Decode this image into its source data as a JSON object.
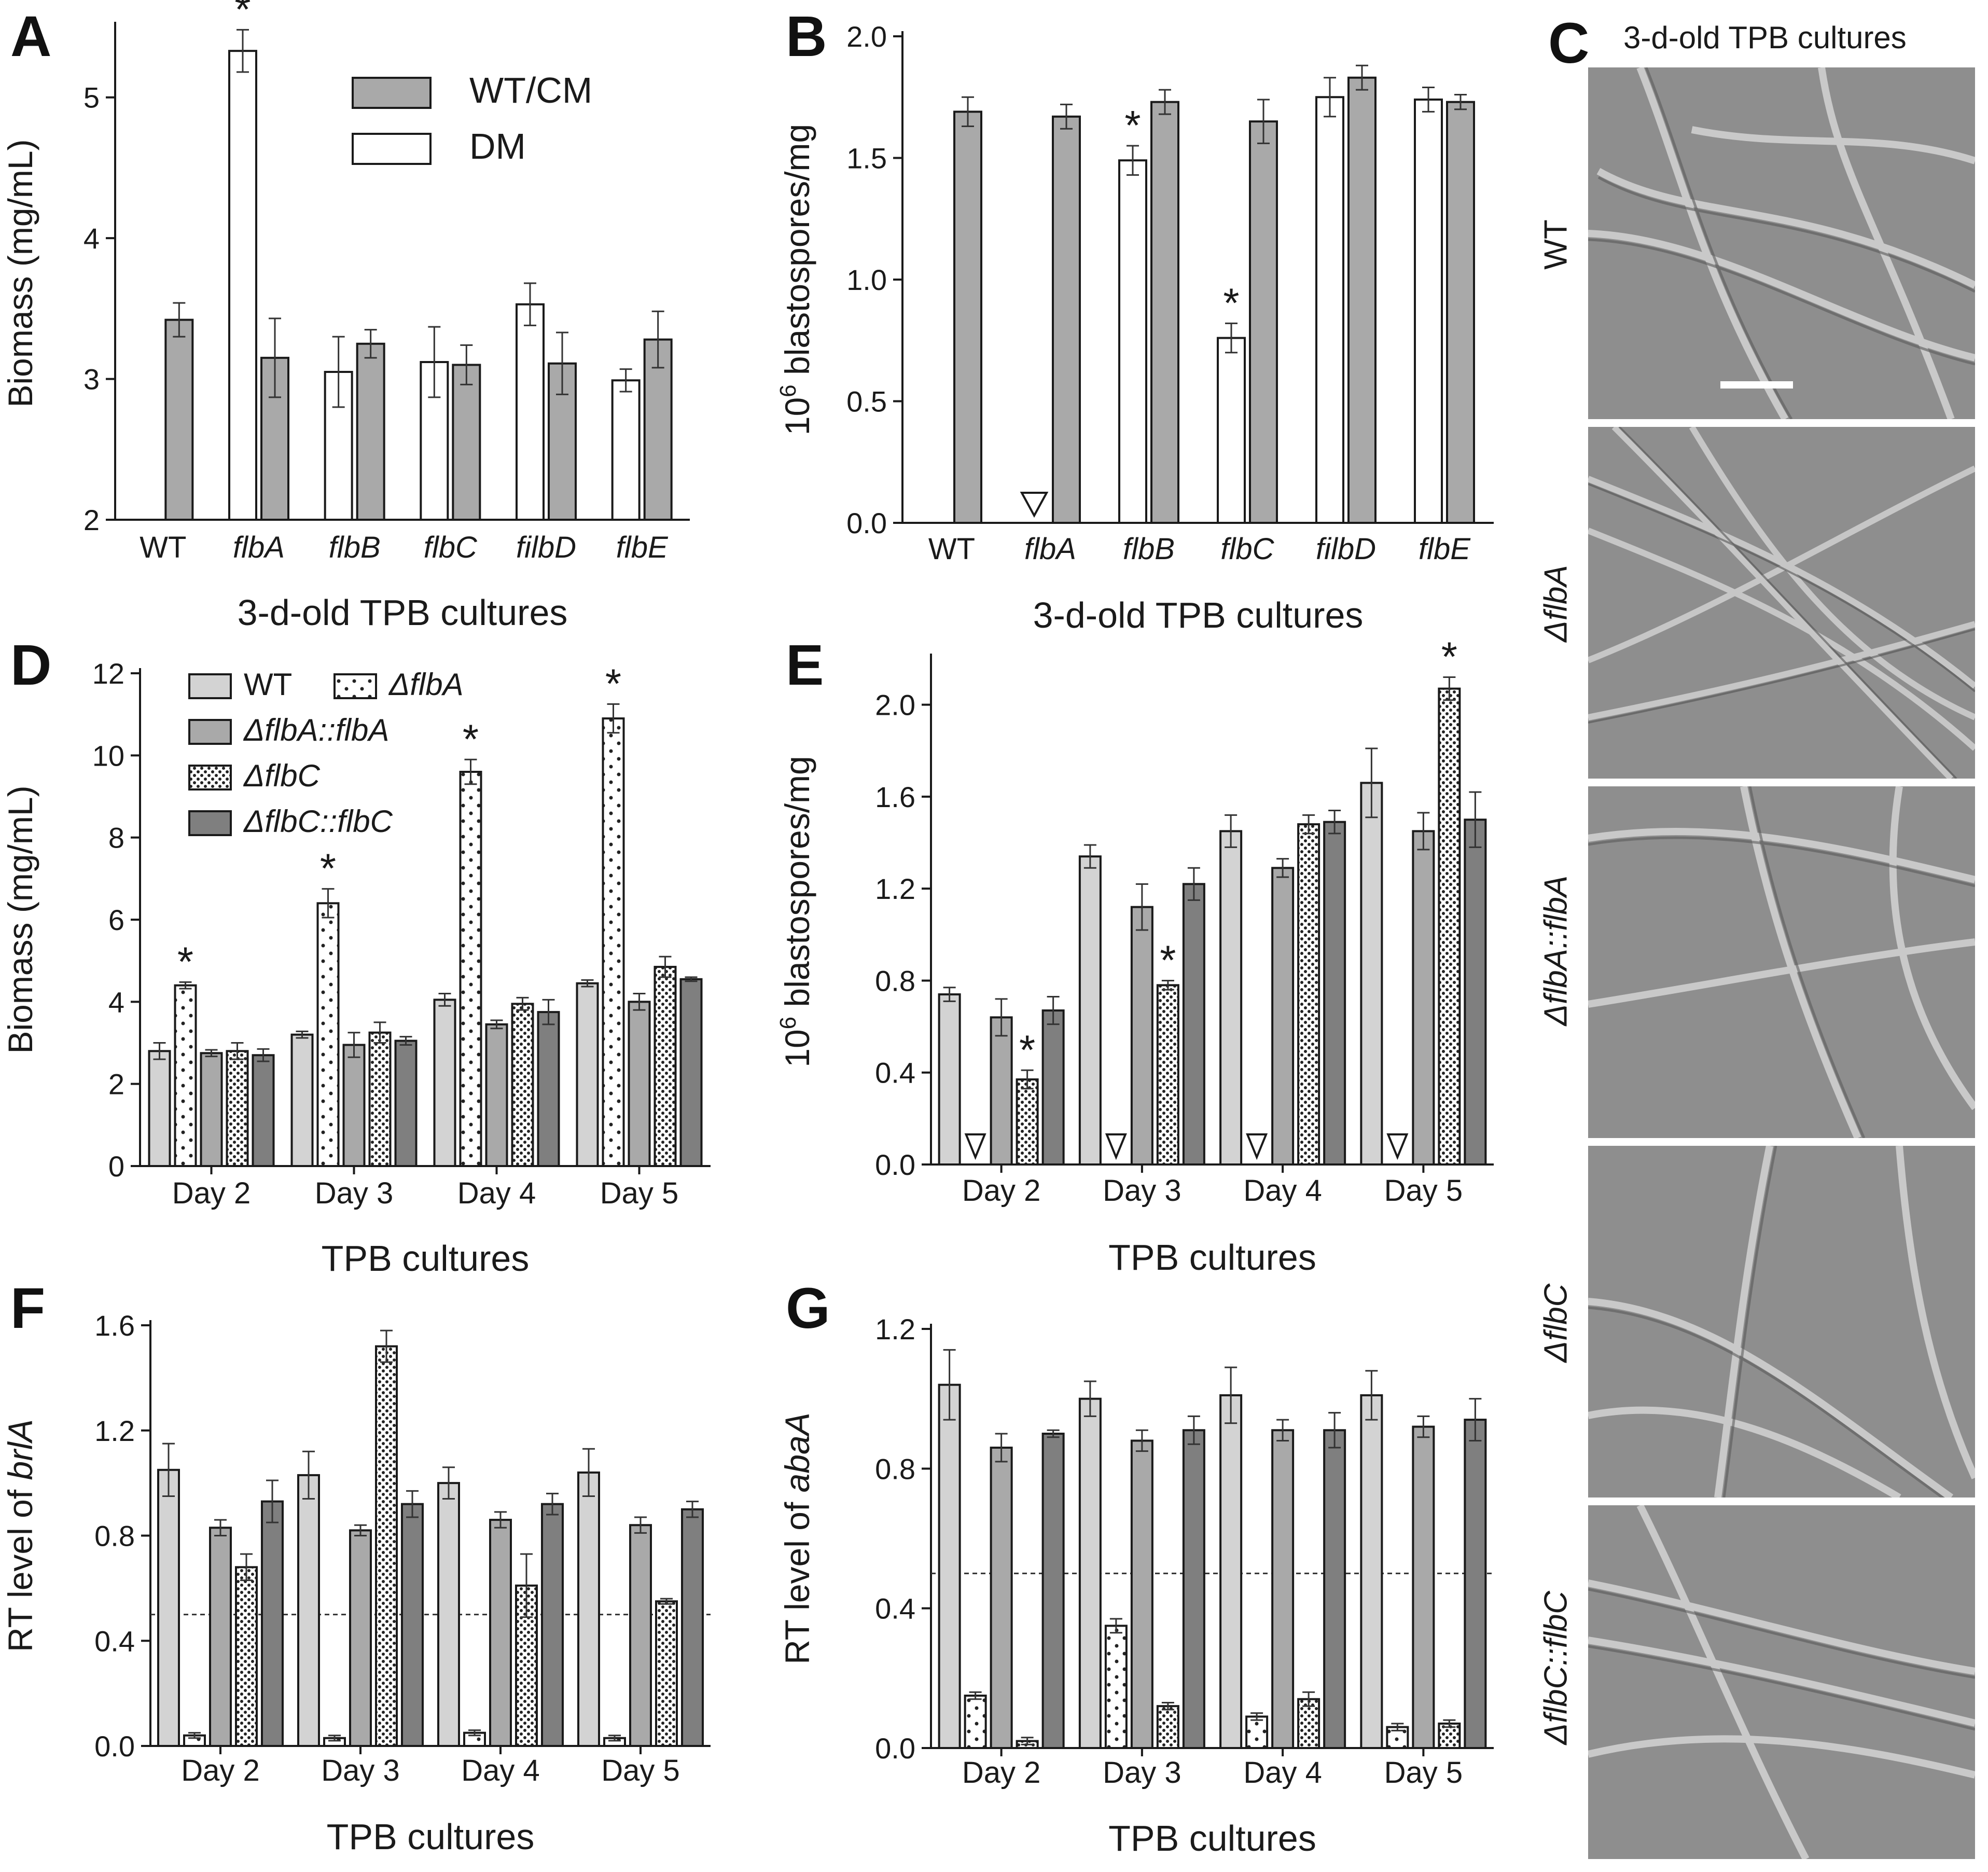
{
  "panel_c": {
    "letter": "C",
    "title": "3-d-old TPB cultures",
    "strains": [
      "WT",
      "ΔflbA",
      "ΔflbA::flbA",
      "ΔflbC",
      "ΔflbC::flbC"
    ]
  },
  "colors": {
    "gray_mid": "#a9a9a9",
    "gray_light": "#d3d3d3",
    "gray_dark": "#7f7f7f",
    "white": "#ffffff",
    "edge": "#1a1a1a"
  },
  "chart_data": [
    {
      "panel": "A",
      "type": "bar",
      "xlabel": "3-d-old TPB cultures",
      "ylabel": "Biomass (mg/mL)",
      "ylim": [
        2,
        5.5
      ],
      "yticks": [
        2,
        3,
        4,
        5
      ],
      "categories": [
        "WT",
        "flbA",
        "flbB",
        "flbC",
        "filbD",
        "flbE"
      ],
      "legend": [
        "WT/CM",
        "DM"
      ],
      "legend_position": "top-center",
      "series": [
        {
          "name": "DM",
          "style": "white",
          "values": [
            null,
            5.33,
            3.05,
            3.12,
            3.53,
            2.99
          ],
          "errors": [
            null,
            0.15,
            0.25,
            0.25,
            0.15,
            0.08
          ],
          "stars": [
            false,
            true,
            false,
            false,
            false,
            false
          ]
        },
        {
          "name": "WT/CM",
          "style": "gray_mid",
          "values": [
            3.42,
            3.15,
            3.25,
            3.1,
            3.11,
            3.28
          ],
          "errors": [
            0.12,
            0.28,
            0.1,
            0.14,
            0.22,
            0.2
          ],
          "stars": [
            false,
            false,
            false,
            false,
            false,
            false
          ]
        }
      ]
    },
    {
      "panel": "B",
      "type": "bar",
      "xlabel": "3-d-old TPB cultures",
      "ylabel": "10^6 blastospores/mg",
      "ylim": [
        0,
        2.0
      ],
      "yticks": [
        "0.0",
        "0.5",
        "1.0",
        "1.5",
        "2.0"
      ],
      "categories": [
        "WT",
        "flbA",
        "flbB",
        "flbC",
        "filbD",
        "flbE"
      ],
      "series": [
        {
          "name": "DM",
          "style": "white",
          "values": [
            null,
            0,
            1.49,
            0.76,
            1.75,
            1.74
          ],
          "errors": [
            null,
            null,
            0.06,
            0.06,
            0.08,
            0.05
          ],
          "stars": [
            false,
            false,
            true,
            true,
            false,
            false
          ],
          "triangles": [
            false,
            true,
            false,
            false,
            false,
            false
          ]
        },
        {
          "name": "WT/CM",
          "style": "gray_mid",
          "values": [
            1.69,
            1.67,
            1.73,
            1.65,
            1.83,
            1.73
          ],
          "errors": [
            0.06,
            0.05,
            0.05,
            0.09,
            0.05,
            0.03
          ],
          "stars": [
            false,
            false,
            false,
            false,
            false,
            false
          ]
        }
      ]
    },
    {
      "panel": "D",
      "type": "bar",
      "xlabel": "TPB cultures",
      "ylabel": "Biomass (mg/mL)",
      "ylim": [
        0,
        12
      ],
      "yticks": [
        0,
        2,
        4,
        6,
        8,
        10,
        12
      ],
      "categories": [
        "Day 2",
        "Day 3",
        "Day 4",
        "Day 5"
      ],
      "legend": [
        "WT",
        "ΔflbA",
        "ΔflbA::flbA",
        "ΔflbC",
        "ΔflbC::flbC"
      ],
      "legend_position": "top-left",
      "series": [
        {
          "name": "WT",
          "style": "gray_light",
          "values": [
            2.8,
            3.2,
            4.05,
            4.45
          ],
          "errors": [
            0.2,
            0.08,
            0.15,
            0.08
          ]
        },
        {
          "name": "ΔflbA",
          "style": "dots_sparse",
          "values": [
            4.4,
            6.4,
            9.6,
            10.9
          ],
          "errors": [
            0.08,
            0.35,
            0.3,
            0.35
          ],
          "stars": [
            true,
            true,
            true,
            true
          ]
        },
        {
          "name": "ΔflbA::flbA",
          "style": "gray_mid",
          "values": [
            2.75,
            2.95,
            3.45,
            4.0
          ],
          "errors": [
            0.08,
            0.3,
            0.1,
            0.2
          ]
        },
        {
          "name": "ΔflbC",
          "style": "dots_dense",
          "values": [
            2.8,
            3.25,
            3.95,
            4.85
          ],
          "errors": [
            0.2,
            0.25,
            0.15,
            0.25
          ]
        },
        {
          "name": "ΔflbC::flbC",
          "style": "gray_dark",
          "values": [
            2.7,
            3.05,
            3.75,
            4.55
          ],
          "errors": [
            0.15,
            0.1,
            0.3,
            0.05
          ]
        }
      ]
    },
    {
      "panel": "E",
      "type": "bar",
      "xlabel": "TPB cultures",
      "ylabel": "10^6 blastospores/mg",
      "ylim": [
        0,
        2.2
      ],
      "yticks": [
        "0.0",
        "0.4",
        "0.8",
        "1.2",
        "1.6",
        "2.0"
      ],
      "categories": [
        "Day 2",
        "Day 3",
        "Day 4",
        "Day 5"
      ],
      "series": [
        {
          "name": "WT",
          "style": "gray_light",
          "values": [
            0.74,
            1.34,
            1.45,
            1.66
          ],
          "errors": [
            0.03,
            0.05,
            0.07,
            0.15
          ]
        },
        {
          "name": "ΔflbA",
          "style": "dots_sparse",
          "values": [
            0,
            0,
            0,
            0
          ],
          "errors": [
            null,
            null,
            null,
            null
          ],
          "triangles": [
            true,
            true,
            true,
            true
          ]
        },
        {
          "name": "ΔflbA::flbA",
          "style": "gray_mid",
          "values": [
            0.64,
            1.12,
            1.29,
            1.45
          ],
          "errors": [
            0.08,
            0.1,
            0.04,
            0.08
          ]
        },
        {
          "name": "ΔflbC",
          "style": "dots_dense",
          "values": [
            0.37,
            0.78,
            1.48,
            2.07
          ],
          "errors": [
            0.04,
            0.02,
            0.04,
            0.05
          ],
          "stars": [
            true,
            true,
            false,
            true
          ]
        },
        {
          "name": "ΔflbC::flbC",
          "style": "gray_dark",
          "values": [
            0.67,
            1.22,
            1.49,
            1.5
          ],
          "errors": [
            0.06,
            0.07,
            0.05,
            0.12
          ]
        }
      ]
    },
    {
      "panel": "F",
      "type": "bar",
      "xlabel": "TPB cultures",
      "ylabel": "RT level of brlA",
      "ylim": [
        0,
        1.6
      ],
      "yticks": [
        "0.0",
        "0.4",
        "0.8",
        "1.2",
        "1.6"
      ],
      "reference_line": 0.5,
      "categories": [
        "Day 2",
        "Day 3",
        "Day 4",
        "Day 5"
      ],
      "series": [
        {
          "name": "WT",
          "style": "gray_light",
          "values": [
            1.05,
            1.03,
            1.0,
            1.04
          ],
          "errors": [
            0.1,
            0.09,
            0.06,
            0.09
          ]
        },
        {
          "name": "ΔflbA",
          "style": "dots_sparse",
          "values": [
            0.04,
            0.03,
            0.05,
            0.03
          ],
          "errors": [
            0.01,
            0.01,
            0.01,
            0.01
          ]
        },
        {
          "name": "ΔflbA::flbA",
          "style": "gray_mid",
          "values": [
            0.83,
            0.82,
            0.86,
            0.84
          ],
          "errors": [
            0.03,
            0.02,
            0.03,
            0.03
          ]
        },
        {
          "name": "ΔflbC",
          "style": "dots_dense",
          "values": [
            0.68,
            1.52,
            0.61,
            0.55
          ],
          "errors": [
            0.05,
            0.06,
            0.12,
            0.01
          ]
        },
        {
          "name": "ΔflbC::flbC",
          "style": "gray_dark",
          "values": [
            0.93,
            0.92,
            0.92,
            0.9
          ],
          "errors": [
            0.08,
            0.05,
            0.04,
            0.03
          ]
        }
      ]
    },
    {
      "panel": "G",
      "type": "bar",
      "xlabel": "TPB cultures",
      "ylabel": "RT level of abaA",
      "ylim": [
        0,
        1.2
      ],
      "yticks": [
        "0.0",
        "0.4",
        "0.8",
        "1.2"
      ],
      "reference_line": 0.5,
      "categories": [
        "Day 2",
        "Day 3",
        "Day 4",
        "Day 5"
      ],
      "series": [
        {
          "name": "WT",
          "style": "gray_light",
          "values": [
            1.04,
            1.0,
            1.01,
            1.01
          ],
          "errors": [
            0.1,
            0.05,
            0.08,
            0.07
          ]
        },
        {
          "name": "ΔflbA",
          "style": "dots_sparse",
          "values": [
            0.15,
            0.35,
            0.09,
            0.06
          ],
          "errors": [
            0.01,
            0.02,
            0.01,
            0.01
          ]
        },
        {
          "name": "ΔflbA::flbA",
          "style": "gray_mid",
          "values": [
            0.86,
            0.88,
            0.91,
            0.92
          ],
          "errors": [
            0.04,
            0.03,
            0.03,
            0.03
          ]
        },
        {
          "name": "ΔflbC",
          "style": "dots_dense",
          "values": [
            0.02,
            0.12,
            0.14,
            0.07
          ],
          "errors": [
            0.01,
            0.01,
            0.02,
            0.01
          ]
        },
        {
          "name": "ΔflbC::flbC",
          "style": "gray_dark",
          "values": [
            0.9,
            0.91,
            0.91,
            0.94
          ],
          "errors": [
            0.01,
            0.04,
            0.05,
            0.06
          ]
        }
      ]
    }
  ]
}
